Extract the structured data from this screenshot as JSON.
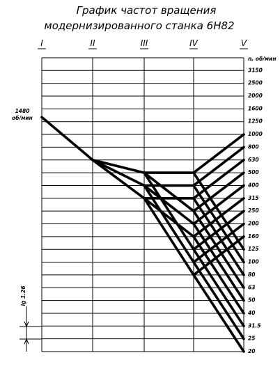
{
  "title": {
    "line1": "График частот вращения",
    "line2": "модернизированного станка 6Н82"
  },
  "shafts": [
    "I",
    "II",
    "III",
    "IV",
    "V"
  ],
  "unit": "n, об/мин",
  "speeds": [
    "3150",
    "2500",
    "2000",
    "1600",
    "1250",
    "1000",
    "800",
    "630",
    "500",
    "400",
    "315",
    "250",
    "200",
    "160",
    "125",
    "100",
    "80",
    "63",
    "50",
    "40",
    "31.5",
    "25",
    "20"
  ],
  "input": {
    "value": "1480",
    "unit": "об/мин"
  },
  "scale": "lg 1.26"
}
